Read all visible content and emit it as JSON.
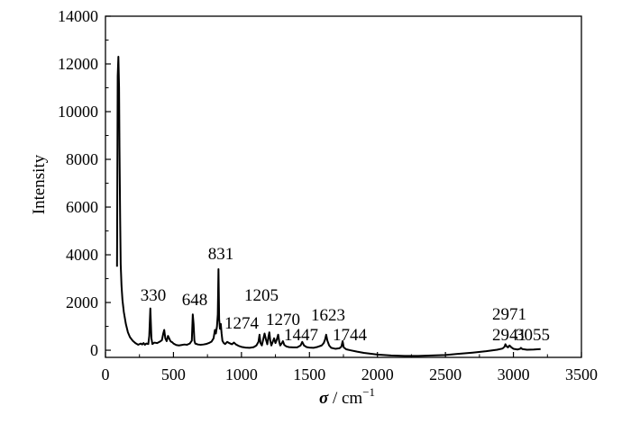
{
  "chart_data": {
    "type": "line",
    "title": "",
    "xlabel": "σ / cm",
    "xlabel_symbol": "σ",
    "xlabel_unit": "cm",
    "xlabel_exponent": "−1",
    "ylabel": "Intensity",
    "xlim": [
      0,
      3500
    ],
    "ylim": [
      -300,
      14000
    ],
    "x_ticks": [
      0,
      500,
      1000,
      1500,
      2000,
      2500,
      3000,
      3500
    ],
    "y_ticks": [
      0,
      2000,
      4000,
      6000,
      8000,
      10000,
      12000,
      14000
    ],
    "grid": false,
    "legend": "none",
    "line_color": "#000000",
    "series": [
      {
        "x": [
          85,
          90,
          95,
          100,
          103,
          108,
          112,
          118,
          125,
          135,
          150,
          165,
          180,
          200,
          220,
          240,
          260,
          270,
          280,
          290,
          300,
          315,
          322,
          330,
          338,
          345,
          360,
          380,
          400,
          415,
          425,
          432,
          440,
          450,
          460,
          470,
          478,
          485,
          492,
          500,
          520,
          540,
          560,
          580,
          600,
          620,
          635,
          642,
          648,
          654,
          660,
          680,
          700,
          720,
          740,
          760,
          780,
          795,
          805,
          812,
          820,
          826,
          831,
          836,
          842,
          848,
          854,
          860,
          870,
          880,
          895,
          910,
          930,
          945,
          960,
          980,
          1000,
          1030,
          1060,
          1090,
          1110,
          1125,
          1133,
          1140,
          1150,
          1160,
          1170,
          1180,
          1190,
          1198,
          1205,
          1212,
          1220,
          1230,
          1240,
          1250,
          1260,
          1270,
          1278,
          1285,
          1295,
          1305,
          1315,
          1330,
          1350,
          1380,
          1410,
          1435,
          1447,
          1460,
          1480,
          1500,
          1530,
          1560,
          1590,
          1605,
          1615,
          1623,
          1632,
          1645,
          1660,
          1690,
          1720,
          1735,
          1744,
          1752,
          1770,
          1800,
          1850,
          1900,
          2000,
          2100,
          2200,
          2300,
          2400,
          2500,
          2600,
          2700,
          2800,
          2880,
          2920,
          2935,
          2941,
          2950,
          2960,
          2971,
          2985,
          3000,
          3030,
          3050,
          3055,
          3065,
          3100,
          3150,
          3200
        ],
        "y": [
          3500,
          11500,
          12300,
          11000,
          8500,
          5500,
          3600,
          2700,
          2100,
          1600,
          1100,
          750,
          550,
          400,
          300,
          230,
          280,
          240,
          300,
          230,
          280,
          260,
          600,
          1750,
          500,
          260,
          320,
          300,
          360,
          420,
          700,
          850,
          500,
          380,
          600,
          480,
          380,
          350,
          330,
          280,
          220,
          200,
          220,
          240,
          230,
          280,
          400,
          1500,
          1100,
          400,
          280,
          240,
          230,
          240,
          260,
          300,
          360,
          500,
          850,
          700,
          1000,
          1500,
          3400,
          1300,
          900,
          1100,
          700,
          400,
          300,
          260,
          350,
          300,
          250,
          320,
          240,
          180,
          140,
          110,
          100,
          130,
          200,
          350,
          650,
          300,
          200,
          450,
          700,
          450,
          250,
          550,
          750,
          400,
          200,
          350,
          500,
          300,
          450,
          650,
          350,
          200,
          280,
          380,
          220,
          160,
          130,
          120,
          120,
          200,
          350,
          200,
          130,
          110,
          100,
          140,
          200,
          300,
          450,
          650,
          400,
          200,
          100,
          60,
          80,
          150,
          380,
          120,
          40,
          0,
          -60,
          -110,
          -180,
          -220,
          -240,
          -240,
          -220,
          -200,
          -150,
          -100,
          -40,
          20,
          70,
          150,
          250,
          160,
          120,
          200,
          120,
          60,
          30,
          60,
          100,
          50,
          20,
          30,
          50
        ],
        "peaks": [
          {
            "label": "330",
            "x": 330
          },
          {
            "label": "648",
            "x": 648
          },
          {
            "label": "831",
            "x": 831
          },
          {
            "label": "1205",
            "x": 1205
          },
          {
            "label": "1274",
            "x": 1274
          },
          {
            "label": "1270",
            "x": 1270
          },
          {
            "label": "1447",
            "x": 1447
          },
          {
            "label": "1623",
            "x": 1623
          },
          {
            "label": "1744",
            "x": 1744
          },
          {
            "label": "2941",
            "x": 2941
          },
          {
            "label": "2971",
            "x": 2971
          },
          {
            "label": "3055",
            "x": 3055
          }
        ]
      }
    ]
  }
}
